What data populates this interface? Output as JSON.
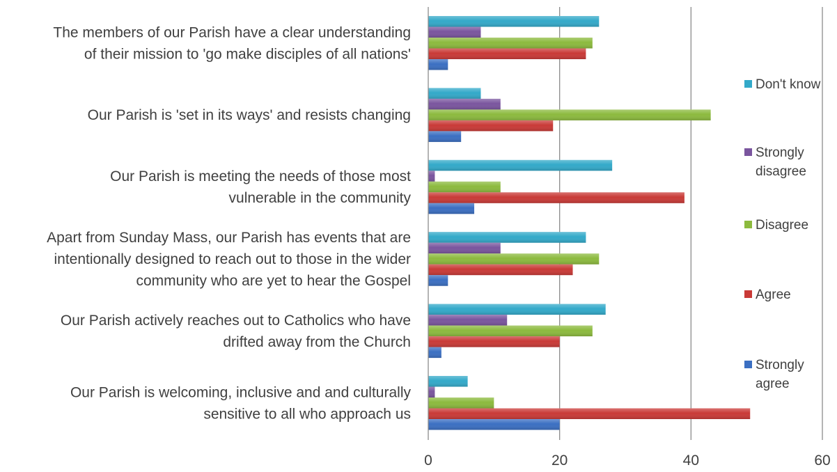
{
  "chart_data": {
    "type": "bar",
    "orientation": "horizontal",
    "title": "",
    "xlabel": "",
    "ylabel": "",
    "xlim": [
      0,
      60
    ],
    "x_ticks": [
      0,
      20,
      40,
      60
    ],
    "grid": true,
    "legend_position": "right",
    "categories": [
      [
        "The members of our Parish have a clear understanding",
        "of their mission to 'go make disciples of all nations'"
      ],
      [
        "Our Parish is 'set in its ways' and resists changing"
      ],
      [
        "Our Parish is meeting the needs of those most",
        "vulnerable in the community"
      ],
      [
        "Apart from Sunday Mass, our Parish has events that are",
        "intentionally designed to reach out to those in the wider",
        "community who are yet to hear the Gospel"
      ],
      [
        "Our Parish actively reaches out to Catholics who have",
        "drifted away from the Church"
      ],
      [
        "Our Parish is welcoming, inclusive and and culturally",
        "sensitive to all who approach us"
      ]
    ],
    "series": [
      {
        "name": "Don't know",
        "legend_lines": [
          "Don't know"
        ],
        "color": "#33a9c9",
        "values": [
          26,
          8,
          28,
          24,
          27,
          6
        ]
      },
      {
        "name": "Strongly disagree",
        "legend_lines": [
          "Strongly",
          "disagree"
        ],
        "color": "#7a559e",
        "values": [
          8,
          11,
          1,
          11,
          12,
          1
        ]
      },
      {
        "name": "Disagree",
        "legend_lines": [
          "Disagree"
        ],
        "color": "#8cba3e",
        "values": [
          25,
          43,
          11,
          26,
          25,
          10
        ]
      },
      {
        "name": "Agree",
        "legend_lines": [
          "Agree"
        ],
        "color": "#c93a37",
        "values": [
          24,
          19,
          39,
          22,
          20,
          49
        ]
      },
      {
        "name": "Strongly agree",
        "legend_lines": [
          "Strongly",
          "agree"
        ],
        "color": "#3b6fc2",
        "values": [
          3,
          5,
          7,
          3,
          2,
          20
        ]
      }
    ]
  }
}
